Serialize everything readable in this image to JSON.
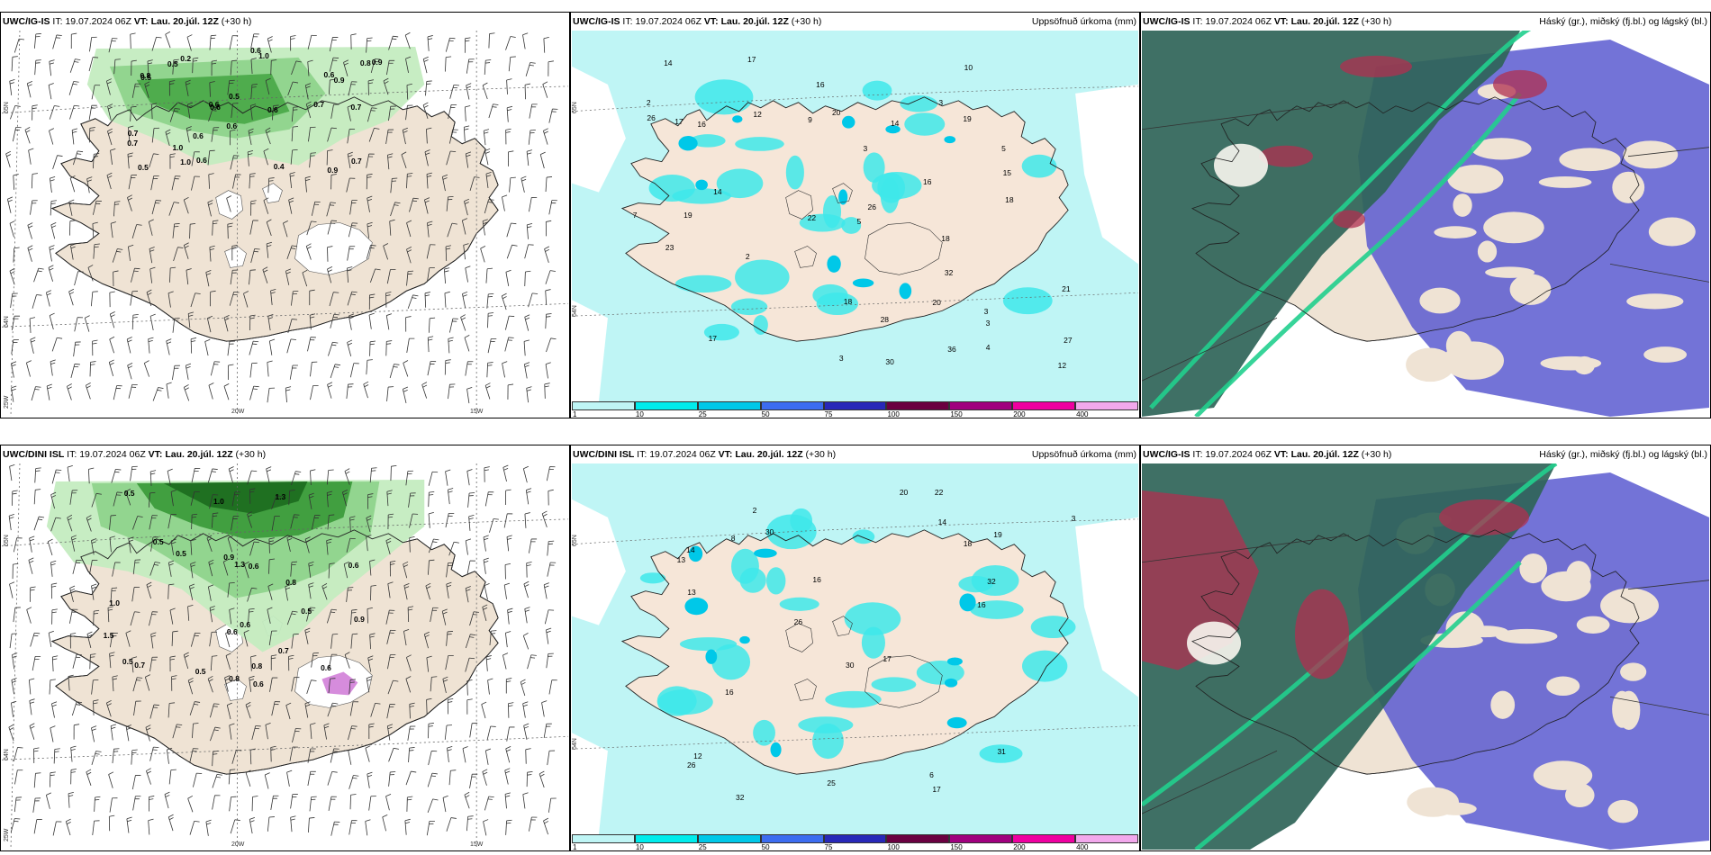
{
  "rows": [
    {
      "model": "UWC/IG-IS",
      "it_label": "IT:",
      "it_value": "19.07.2024 06Z",
      "vt_label": "VT:",
      "vt_value": "Lau. 20.júl. 12Z",
      "lead": "(+30 h)",
      "precip_title": "Uppsöfnuð úrkoma (mm)",
      "cloud_title": "Háský (gr.), miðský (fj.bl.) og lágský (bl.)",
      "lat_labels": [
        "65N",
        "64N",
        "25W"
      ],
      "lon_labels": [
        "20W",
        "15W"
      ],
      "fog_values": [
        "0.5",
        "0.7",
        "0.6",
        "0.9",
        "0.7",
        "0.5",
        "0.6",
        "1.0",
        "0.6",
        "0.8",
        "0.6",
        "0.2",
        "0.8",
        "0.9",
        "0.6",
        "1.0",
        "0.5",
        "0.9",
        "0.6",
        "0.4",
        "0.7",
        "0.6",
        "0.7",
        "0.5",
        "0.6",
        "0.7",
        "1.0"
      ],
      "precip_values": [
        "3",
        "3",
        "2",
        "5",
        "3",
        "20",
        "30",
        "3",
        "14",
        "23",
        "3",
        "14",
        "18",
        "17",
        "27",
        "19",
        "21",
        "20",
        "28",
        "32",
        "26",
        "18",
        "16",
        "22",
        "15",
        "16",
        "14",
        "12",
        "26",
        "16",
        "17",
        "19",
        "10",
        "18",
        "2",
        "9",
        "17",
        "12",
        "36",
        "4",
        "5",
        "7"
      ]
    },
    {
      "model": "UWC/DINI ISL",
      "it_label": "IT:",
      "it_value": "19.07.2024 06Z",
      "vt_label": "VT:",
      "vt_value": "Lau. 20.júl. 12Z",
      "lead": "(+30 h)",
      "precip_title": "Uppsöfnuð úrkoma (mm)",
      "cloud_title": "Háský (gr.), miðský (fj.bl.) og lágský (bl.)",
      "cloud_model": "UWC/IG-IS",
      "lat_labels": [
        "65N",
        "64N",
        "25W"
      ],
      "lon_labels": [
        "20W",
        "15W"
      ],
      "fog_values": [
        "1.3",
        "1.0",
        "1.3",
        "1.5",
        "0.6",
        "0.5",
        "0.5",
        "0.5",
        "0.5",
        "0.5",
        "0.5",
        "1.0",
        "0.9",
        "0.8",
        "0.6",
        "0.7",
        "0.8",
        "0.9",
        "0.8",
        "0.6",
        "0.6",
        "0.6",
        "0.6",
        "0.7"
      ],
      "precip_values": [
        "2",
        "32",
        "17",
        "13",
        "19",
        "26",
        "31",
        "30",
        "14",
        "18",
        "12",
        "22",
        "16",
        "13",
        "25",
        "17",
        "16",
        "30",
        "14",
        "16",
        "20",
        "32",
        "26",
        "6",
        "8",
        "3"
      ]
    }
  ],
  "colorbar": {
    "ticks": [
      "1",
      "10",
      "25",
      "50",
      "75",
      "100",
      "150",
      "200",
      "400"
    ],
    "colors": [
      "#bff5f5",
      "#00ecec",
      "#00c8e8",
      "#3c6cf0",
      "#2828b8",
      "#6a0040",
      "#a0007e",
      "#ee00a0",
      "#f2a8ec"
    ]
  }
}
